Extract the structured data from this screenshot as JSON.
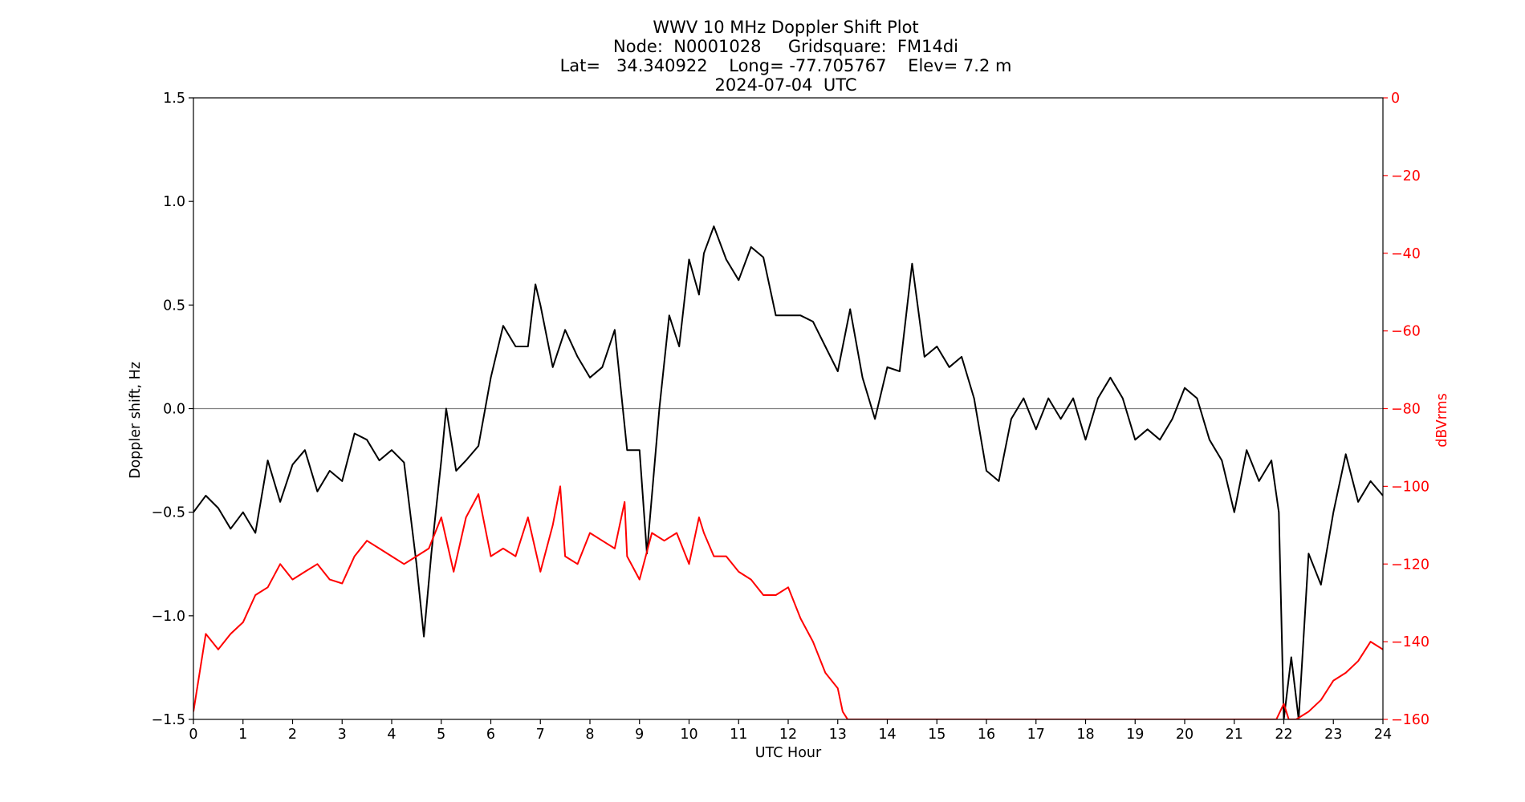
{
  "title_lines": [
    "WWV 10 MHz Doppler Shift Plot",
    "Node:  N0001028     Gridsquare:  FM14di",
    "Lat=   34.340922    Long= -77.705767    Elev= 7.2 m",
    "2024-07-04  UTC"
  ],
  "chart_data": {
    "type": "line",
    "xlabel": "UTC Hour",
    "ylabel_left": "Doppler shift, Hz",
    "ylabel_right": "dBVrms",
    "xlim": [
      0,
      24
    ],
    "ylim_left": [
      -1.5,
      1.5
    ],
    "ylim_right": [
      -160,
      0
    ],
    "x_ticks": [
      "0",
      "1",
      "2",
      "3",
      "4",
      "5",
      "6",
      "7",
      "8",
      "9",
      "10",
      "11",
      "12",
      "13",
      "14",
      "15",
      "16",
      "17",
      "18",
      "19",
      "20",
      "21",
      "22",
      "23",
      "24"
    ],
    "y_ticks_left": [
      "−1.5",
      "−1.0",
      "−0.5",
      "0.0",
      "0.5",
      "1.0",
      "1.5"
    ],
    "y_ticks_right": [
      "−160",
      "−140",
      "−120",
      "−100",
      "−80",
      "−60",
      "−40",
      "−20",
      "0"
    ],
    "reference_line_y": 0.0,
    "colors": {
      "doppler": "#000000",
      "power": "#ff0000",
      "zero_line": "#808080",
      "right_axis": "#ff0000"
    },
    "series": [
      {
        "axis": "left",
        "x": [
          0,
          0.25,
          0.5,
          0.75,
          1,
          1.25,
          1.5,
          1.75,
          2,
          2.25,
          2.5,
          2.75,
          3,
          3.25,
          3.5,
          3.75,
          4,
          4.25,
          4.5,
          4.65,
          4.8,
          5,
          5.1,
          5.3,
          5.5,
          5.75,
          6,
          6.25,
          6.5,
          6.75,
          6.9,
          7,
          7.25,
          7.5,
          7.75,
          8,
          8.25,
          8.5,
          8.75,
          9,
          9.15,
          9.4,
          9.6,
          9.8,
          10,
          10.2,
          10.3,
          10.5,
          10.75,
          11,
          11.25,
          11.5,
          11.75,
          12,
          12.25,
          12.5,
          12.75,
          13,
          13.25,
          13.5,
          13.75,
          14,
          14.25,
          14.5,
          14.75,
          15,
          15.25,
          15.5,
          15.75,
          16,
          16.25,
          16.5,
          16.75,
          17,
          17.25,
          17.5,
          17.75,
          18,
          18.25,
          18.5,
          18.75,
          19,
          19.25,
          19.5,
          19.75,
          20,
          20.25,
          20.5,
          20.75,
          21,
          21.25,
          21.5,
          21.75,
          21.9,
          22,
          22.15,
          22.3,
          22.5,
          22.75,
          23,
          23.25,
          23.5,
          23.75,
          24
        ],
        "y": [
          -0.5,
          -0.42,
          -0.48,
          -0.58,
          -0.5,
          -0.6,
          -0.25,
          -0.45,
          -0.27,
          -0.2,
          -0.4,
          -0.3,
          -0.35,
          -0.12,
          -0.15,
          -0.25,
          -0.2,
          -0.26,
          -0.75,
          -1.1,
          -0.7,
          -0.25,
          0.0,
          -0.3,
          -0.25,
          -0.18,
          0.15,
          0.4,
          0.3,
          0.3,
          0.6,
          0.5,
          0.2,
          0.38,
          0.25,
          0.15,
          0.2,
          0.38,
          -0.2,
          -0.2,
          -0.7,
          0.0,
          0.45,
          0.3,
          0.72,
          0.55,
          0.75,
          0.88,
          0.72,
          0.62,
          0.78,
          0.73,
          0.45,
          0.45,
          0.45,
          0.42,
          0.3,
          0.18,
          0.48,
          0.15,
          -0.05,
          0.2,
          0.18,
          0.7,
          0.25,
          0.3,
          0.2,
          0.25,
          0.05,
          -0.3,
          -0.35,
          -0.05,
          0.05,
          -0.1,
          0.05,
          -0.05,
          0.05,
          -0.15,
          0.05,
          0.15,
          0.05,
          -0.15,
          -0.1,
          -0.15,
          -0.05,
          0.1,
          0.05,
          -0.15,
          -0.25,
          -0.5,
          -0.2,
          -0.35,
          -0.25,
          -0.5,
          -1.5,
          -1.2,
          -1.5,
          -0.7,
          -0.85,
          -0.5,
          -0.22,
          -0.45,
          -0.35,
          -0.42
        ]
      },
      {
        "axis": "right",
        "x": [
          0,
          0.25,
          0.5,
          0.75,
          1,
          1.25,
          1.5,
          1.75,
          2,
          2.25,
          2.5,
          2.75,
          3,
          3.25,
          3.5,
          3.75,
          4,
          4.25,
          4.5,
          4.75,
          5,
          5.25,
          5.5,
          5.75,
          6,
          6.25,
          6.5,
          6.75,
          7,
          7.25,
          7.4,
          7.5,
          7.75,
          8,
          8.25,
          8.5,
          8.7,
          8.75,
          9,
          9.25,
          9.5,
          9.75,
          10,
          10.2,
          10.3,
          10.5,
          10.75,
          11,
          11.25,
          11.5,
          11.75,
          12,
          12.25,
          12.5,
          12.75,
          13,
          13.1,
          13.2,
          13.25,
          21.85,
          22.0,
          22.1,
          22.25,
          22.5,
          22.75,
          23,
          23.25,
          23.5,
          23.75,
          24
        ],
        "y": [
          -158,
          -138,
          -142,
          -138,
          -135,
          -128,
          -126,
          -120,
          -124,
          -122,
          -120,
          -124,
          -125,
          -118,
          -114,
          -116,
          -118,
          -120,
          -118,
          -116,
          -108,
          -122,
          -108,
          -102,
          -118,
          -116,
          -118,
          -108,
          -122,
          -110,
          -100,
          -118,
          -120,
          -112,
          -114,
          -116,
          -104,
          -118,
          -124,
          -112,
          -114,
          -112,
          -120,
          -108,
          -112,
          -118,
          -118,
          -122,
          -124,
          -128,
          -128,
          -126,
          -134,
          -140,
          -148,
          -152,
          -158,
          -160,
          -160,
          -160,
          -156,
          -160,
          -160,
          -158,
          -155,
          -150,
          -148,
          -145,
          -140,
          -142
        ]
      }
    ]
  }
}
